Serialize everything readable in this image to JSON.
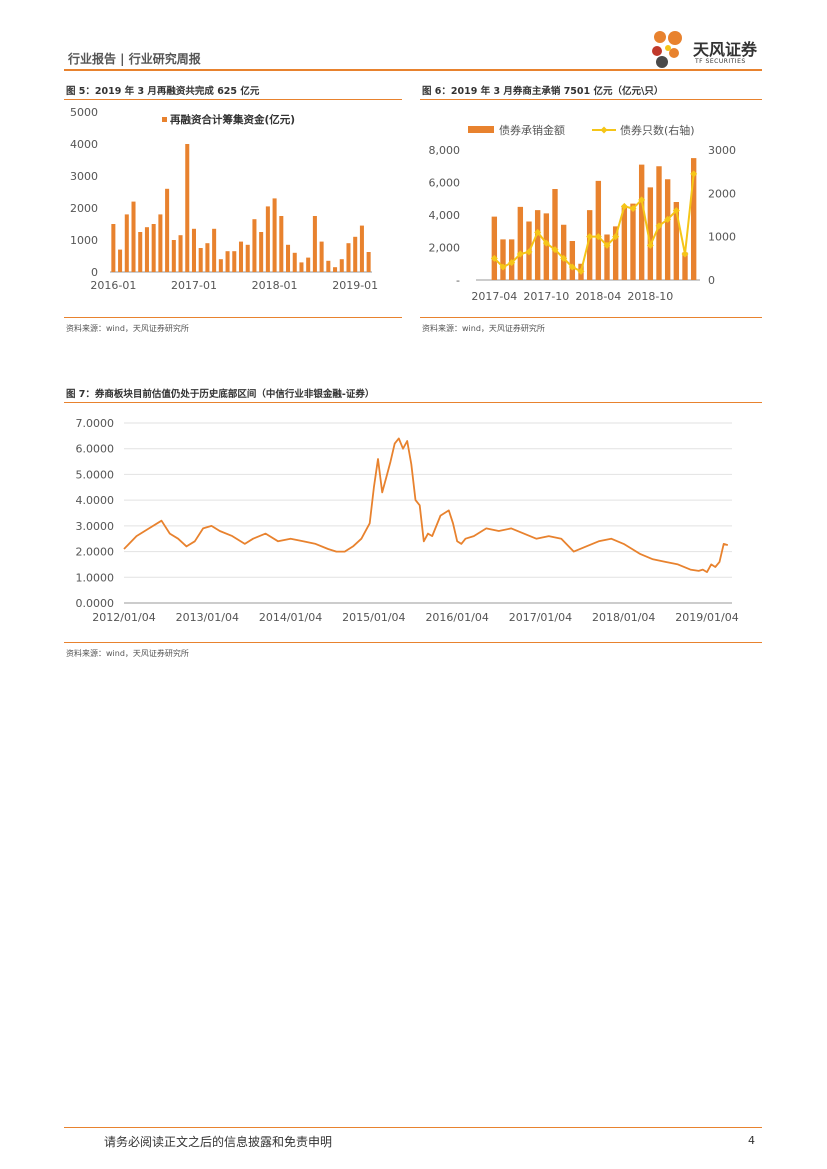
{
  "header": {
    "report_title": "行业报告 | 行业研究周报",
    "logo_cn": "天风证券",
    "logo_en": "TF SECURITIES",
    "accent_color": "#e8822e"
  },
  "footer": {
    "disclaimer": "请务必阅读正文之后的信息披露和免责申明",
    "page_number": "4"
  },
  "figures": {
    "fig5": {
      "title": "图 5：2019 年 3 月再融资共完成 625 亿元",
      "source": "资料来源：wind，天风证券研究所"
    },
    "fig6": {
      "title": "图 6：2019 年 3 月券商主承销 7501 亿元（亿元\\只）",
      "source": "资料来源：wind，天风证券研究所"
    },
    "fig7": {
      "title": "图 7：券商板块目前估值仍处于历史底部区间（中信行业非银金融-证券）",
      "source": "资料来源：wind，天风证券研究所"
    }
  },
  "chart_data": [
    {
      "id": "fig5",
      "type": "bar",
      "title": "2019 年 3 月再融资共完成 625 亿元",
      "legend": [
        "再融资合计筹集资金(亿元)"
      ],
      "legend_position": "top",
      "ylim": [
        0,
        5000
      ],
      "yticks": [
        "0",
        "1000",
        "2000",
        "3000",
        "4000",
        "5000"
      ],
      "xticks": [
        "2016-01",
        "2017-01",
        "2018-01",
        "2019-01"
      ],
      "tick_index": [
        0,
        12,
        24,
        36
      ],
      "bar_color": "#e8822e",
      "values": [
        1500,
        700,
        1800,
        2200,
        1250,
        1400,
        1500,
        1800,
        2600,
        1000,
        1150,
        4000,
        1350,
        750,
        900,
        1350,
        400,
        650,
        650,
        950,
        850,
        1650,
        1250,
        2050,
        2300,
        1750,
        850,
        600,
        300,
        450,
        1750,
        950,
        350,
        150,
        400,
        900,
        1100,
        1450,
        625
      ]
    },
    {
      "id": "fig6",
      "type": "bar+line",
      "title": "2019 年 3 月券商主承销 7501 亿元（亿元\\只）",
      "legend": [
        "债券承销金额",
        "债券只数(右轴)"
      ],
      "legend_position": "top",
      "ylim_left": [
        0,
        8000
      ],
      "yticks_left": [
        "-",
        "2,000",
        "4,000",
        "6,000",
        "8,000"
      ],
      "ylim_right": [
        0,
        3000
      ],
      "yticks_right": [
        "0",
        "1000",
        "2000",
        "3000"
      ],
      "xticks": [
        "2017-04",
        "2017-10",
        "2018-04",
        "2018-10"
      ],
      "tick_index": [
        0,
        6,
        12,
        18
      ],
      "bar_color": "#e8822e",
      "line_color": "#f5c518",
      "bar_values": [
        3900,
        2500,
        2500,
        4500,
        3600,
        4300,
        4100,
        5600,
        3400,
        2400,
        1000,
        4300,
        6100,
        2800,
        3300,
        4500,
        4700,
        7100,
        5700,
        7000,
        6200,
        4800,
        1700,
        7501
      ],
      "line_values": [
        500,
        300,
        400,
        600,
        650,
        1100,
        850,
        700,
        500,
        300,
        200,
        1000,
        1000,
        800,
        1000,
        1700,
        1650,
        1850,
        800,
        1250,
        1400,
        1600,
        600,
        2450
      ]
    },
    {
      "id": "fig7",
      "type": "line",
      "title": "券商板块目前估值仍处于历史底部区间（中信行业非银金融-证券）",
      "ylim": [
        0,
        7
      ],
      "yticks": [
        "0.0000",
        "1.0000",
        "2.0000",
        "3.0000",
        "4.0000",
        "5.0000",
        "6.0000",
        "7.0000"
      ],
      "xlim": [
        2012.0,
        2019.3
      ],
      "xticks": [
        "2012/01/04",
        "2013/01/04",
        "2014/01/04",
        "2015/01/04",
        "2016/01/04",
        "2017/01/04",
        "2018/01/04",
        "2019/01/04"
      ],
      "tick_years": [
        2012,
        2013,
        2014,
        2015,
        2016,
        2017,
        2018,
        2019
      ],
      "line_color": "#e8822e",
      "x": [
        2012.0,
        2012.15,
        2012.3,
        2012.45,
        2012.55,
        2012.65,
        2012.75,
        2012.85,
        2012.95,
        2013.05,
        2013.15,
        2013.3,
        2013.45,
        2013.55,
        2013.7,
        2013.85,
        2014.0,
        2014.15,
        2014.3,
        2014.45,
        2014.55,
        2014.65,
        2014.75,
        2014.85,
        2014.95,
        2015.0,
        2015.05,
        2015.1,
        2015.15,
        2015.2,
        2015.25,
        2015.3,
        2015.35,
        2015.4,
        2015.45,
        2015.5,
        2015.55,
        2015.6,
        2015.65,
        2015.7,
        2015.8,
        2015.9,
        2015.95,
        2016.0,
        2016.05,
        2016.1,
        2016.2,
        2016.35,
        2016.5,
        2016.65,
        2016.8,
        2016.95,
        2017.1,
        2017.25,
        2017.4,
        2017.55,
        2017.7,
        2017.85,
        2018.0,
        2018.1,
        2018.2,
        2018.35,
        2018.5,
        2018.65,
        2018.8,
        2018.9,
        2018.95,
        2019.0,
        2019.05,
        2019.1,
        2019.15,
        2019.2,
        2019.25
      ],
      "y": [
        2.1,
        2.6,
        2.9,
        3.2,
        2.7,
        2.5,
        2.2,
        2.4,
        2.9,
        3.0,
        2.8,
        2.6,
        2.3,
        2.5,
        2.7,
        2.4,
        2.5,
        2.4,
        2.3,
        2.1,
        2.0,
        2.0,
        2.2,
        2.5,
        3.1,
        4.5,
        5.6,
        4.3,
        4.9,
        5.5,
        6.2,
        6.4,
        6.0,
        6.3,
        5.4,
        4.0,
        3.8,
        2.4,
        2.7,
        2.6,
        3.4,
        3.6,
        3.1,
        2.4,
        2.3,
        2.5,
        2.6,
        2.9,
        2.8,
        2.9,
        2.7,
        2.5,
        2.6,
        2.5,
        2.0,
        2.2,
        2.4,
        2.5,
        2.3,
        2.1,
        1.9,
        1.7,
        1.6,
        1.5,
        1.3,
        1.25,
        1.3,
        1.2,
        1.5,
        1.4,
        1.6,
        2.3,
        2.25
      ]
    }
  ]
}
